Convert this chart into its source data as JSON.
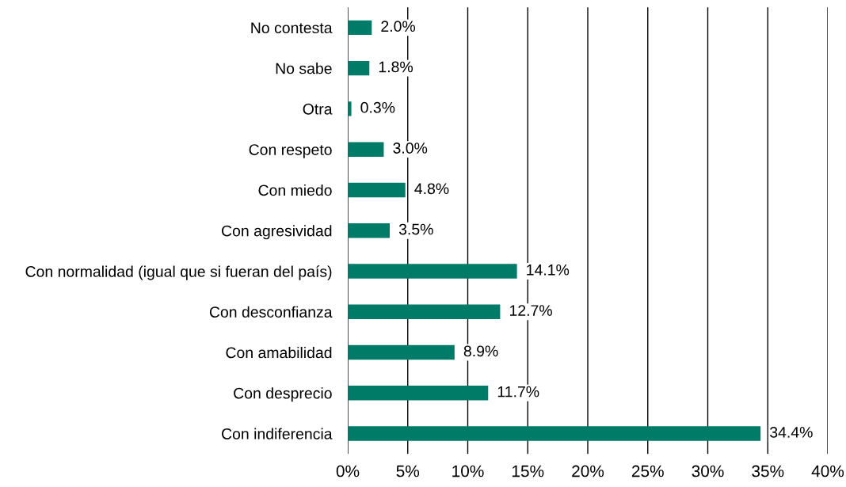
{
  "chart_data": {
    "type": "bar",
    "orientation": "horizontal",
    "categories": [
      "No contesta",
      "No sabe",
      "Otra",
      "Con respeto",
      "Con miedo",
      "Con agresividad",
      "Con normalidad (igual que si fueran del país)",
      "Con desconfianza",
      "Con amabilidad",
      "Con desprecio",
      "Con indiferencia"
    ],
    "values": [
      2.0,
      1.8,
      0.3,
      3.0,
      4.8,
      3.5,
      14.1,
      12.7,
      8.9,
      11.7,
      34.4
    ],
    "value_labels": [
      "2.0%",
      "1.8%",
      "0.3%",
      "3.0%",
      "4.8%",
      "3.5%",
      "14.1%",
      "12.7%",
      "8.9%",
      "11.7%",
      "34.4%"
    ],
    "color": "#007b68",
    "xlim": [
      0,
      40
    ],
    "xticks": [
      {
        "value": 0,
        "label": "0%"
      },
      {
        "value": 5,
        "label": "5%"
      },
      {
        "value": 10,
        "label": "10%"
      },
      {
        "value": 15,
        "label": "15%"
      },
      {
        "value": 20,
        "label": "20%"
      },
      {
        "value": 25,
        "label": "25%"
      },
      {
        "value": 30,
        "label": "30%"
      },
      {
        "value": 35,
        "label": "35%"
      },
      {
        "value": 40,
        "label": "40%"
      }
    ],
    "grid": "x",
    "legend": false
  }
}
